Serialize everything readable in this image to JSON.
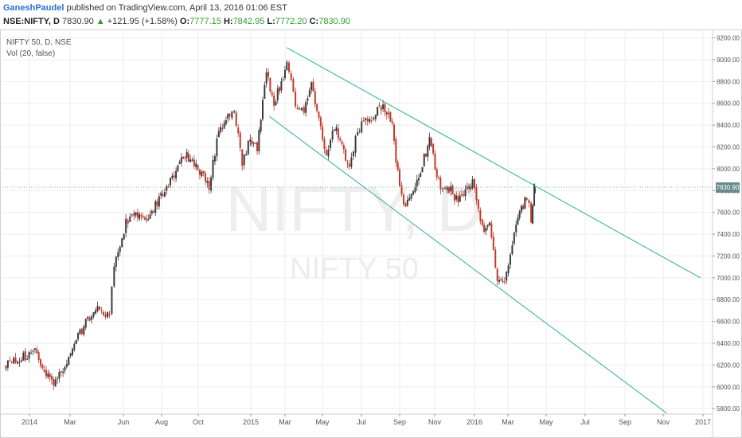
{
  "header": {
    "author": "GaneshPaudel",
    "published_text": "published on TradingView.com, April 13, 2016 01:06 EST",
    "symbol": "NSE:NIFTY, D",
    "last": "7830.90",
    "change_arrow": "▲",
    "change": "+121.95 (+1.58%)",
    "o_label": "O:",
    "o_value": "7777.15",
    "h_label": "H:",
    "h_value": "7842.95",
    "l_label": "L:",
    "l_value": "7772.20",
    "c_label": "C:",
    "c_value": "7830.90"
  },
  "chart_data": {
    "type": "candlestick",
    "symbol_label": "NIFTY 50, D, NSE",
    "indicator_label": "Vol (20, false)",
    "watermark_symbol": "NIFTY, D",
    "watermark_name": "NIFTY 50",
    "last_price_tag": "7830.90",
    "x_tick_labels": [
      "2014",
      "Mar",
      "Jun",
      "Aug",
      "Oct",
      "2015",
      "Mar",
      "May",
      "Jul",
      "Sep",
      "Nov",
      "2016",
      "Mar",
      "May",
      "Jul",
      "Sep",
      "Nov",
      "2017"
    ],
    "y_tick_labels": [
      "9200.00",
      "9000.00",
      "8800.00",
      "8600.00",
      "8400.00",
      "8200.00",
      "8000.00",
      "7800.00",
      "7600.00",
      "7400.00",
      "7200.00",
      "7000.00",
      "6800.00",
      "6600.00",
      "6400.00",
      "6200.00",
      "6000.00",
      "5800.00"
    ],
    "y_ticks": [
      9200,
      9000,
      8800,
      8600,
      8400,
      8200,
      8000,
      7800,
      7600,
      7400,
      7200,
      7000,
      6800,
      6600,
      6400,
      6200,
      6000,
      5800
    ],
    "ylim": [
      5750,
      9270
    ],
    "last_price": 7830.9,
    "colors": {
      "up": "#3a3a3a",
      "down": "#c0392b",
      "trendline": "#3cb89a",
      "price_line": "#6fbfa8",
      "grid": "#eeeeee"
    },
    "trendlines": [
      {
        "name": "upper-channel",
        "from": {
          "date": "2015-03-04",
          "value": 9110
        },
        "to": {
          "date": "2016-12-28",
          "value": 7000
        }
      },
      {
        "name": "lower-channel",
        "from": {
          "date": "2015-02-02",
          "value": 8480
        },
        "to": {
          "date": "2016-11-06",
          "value": 5760
        }
      }
    ],
    "anchors": [
      {
        "date": "2013-12-24",
        "value": 6190
      },
      {
        "date": "2014-01-09",
        "value": 6320
      },
      {
        "date": "2014-01-20",
        "value": 6180
      },
      {
        "date": "2014-02-05",
        "value": 6000
      },
      {
        "date": "2014-02-27",
        "value": 6250
      },
      {
        "date": "2014-03-18",
        "value": 6500
      },
      {
        "date": "2014-04-14",
        "value": 6720
      },
      {
        "date": "2014-05-08",
        "value": 6650
      },
      {
        "date": "2014-05-16",
        "value": 7100
      },
      {
        "date": "2014-06-05",
        "value": 7500
      },
      {
        "date": "2014-06-18",
        "value": 7600
      },
      {
        "date": "2014-07-08",
        "value": 7500
      },
      {
        "date": "2014-07-25",
        "value": 7700
      },
      {
        "date": "2014-08-25",
        "value": 7950
      },
      {
        "date": "2014-09-03",
        "value": 8130
      },
      {
        "date": "2014-09-18",
        "value": 8100
      },
      {
        "date": "2014-10-20",
        "value": 7850
      },
      {
        "date": "2014-11-06",
        "value": 8330
      },
      {
        "date": "2014-11-25",
        "value": 8500
      },
      {
        "date": "2014-12-03",
        "value": 8550
      },
      {
        "date": "2014-12-17",
        "value": 8050
      },
      {
        "date": "2014-12-31",
        "value": 8280
      },
      {
        "date": "2015-01-12",
        "value": 8200
      },
      {
        "date": "2015-01-28",
        "value": 8900
      },
      {
        "date": "2015-02-10",
        "value": 8600
      },
      {
        "date": "2015-03-04",
        "value": 8950
      },
      {
        "date": "2015-03-18",
        "value": 8600
      },
      {
        "date": "2015-04-01",
        "value": 8550
      },
      {
        "date": "2015-04-13",
        "value": 8750
      },
      {
        "date": "2015-05-07",
        "value": 8100
      },
      {
        "date": "2015-05-20",
        "value": 8400
      },
      {
        "date": "2015-06-12",
        "value": 7980
      },
      {
        "date": "2015-06-25",
        "value": 8360
      },
      {
        "date": "2015-07-24",
        "value": 8520
      },
      {
        "date": "2015-08-05",
        "value": 8580
      },
      {
        "date": "2015-08-20",
        "value": 8400
      },
      {
        "date": "2015-09-01",
        "value": 7800
      },
      {
        "date": "2015-09-08",
        "value": 7650
      },
      {
        "date": "2015-09-28",
        "value": 7850
      },
      {
        "date": "2015-10-23",
        "value": 8250
      },
      {
        "date": "2015-11-10",
        "value": 7800
      },
      {
        "date": "2015-11-20",
        "value": 7850
      },
      {
        "date": "2015-12-07",
        "value": 7700
      },
      {
        "date": "2015-12-29",
        "value": 7900
      },
      {
        "date": "2016-01-15",
        "value": 7450
      },
      {
        "date": "2016-01-28",
        "value": 7500
      },
      {
        "date": "2016-02-11",
        "value": 7000
      },
      {
        "date": "2016-02-24",
        "value": 6950
      },
      {
        "date": "2016-03-14",
        "value": 7500
      },
      {
        "date": "2016-03-31",
        "value": 7750
      },
      {
        "date": "2016-04-07",
        "value": 7550
      },
      {
        "date": "2016-04-12",
        "value": 7830
      }
    ]
  }
}
